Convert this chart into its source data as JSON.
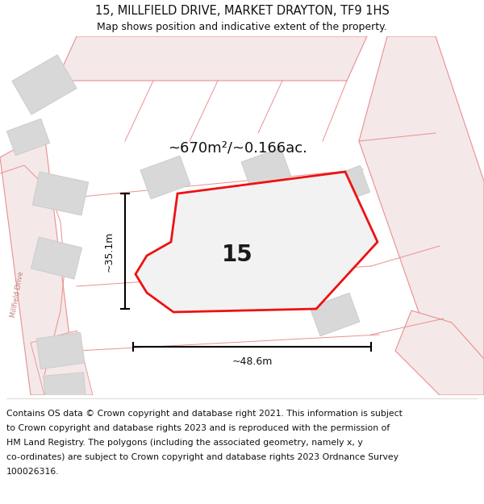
{
  "title_line1": "15, MILLFIELD DRIVE, MARKET DRAYTON, TF9 1HS",
  "title_line2": "Map shows position and indicative extent of the property.",
  "area_label": "~670m²/~0.166ac.",
  "plot_number": "15",
  "dim_width": "~48.6m",
  "dim_height": "~35.1m",
  "footer_lines": [
    "Contains OS data © Crown copyright and database right 2021. This information is subject",
    "to Crown copyright and database rights 2023 and is reproduced with the permission of",
    "HM Land Registry. The polygons (including the associated geometry, namely x, y",
    "co-ordinates) are subject to Crown copyright and database rights 2023 Ordnance Survey",
    "100026316."
  ],
  "bg_color": "#ffffff",
  "map_bg": "#ffffff",
  "plot_color": "#ee1111",
  "plot_fill": "#f0f0f0",
  "road_fill": "#f5e8e8",
  "road_line": "#e89090",
  "building_fill": "#d8d8d8",
  "building_edge": "#cccccc",
  "title_fontsize": 10.5,
  "subtitle_fontsize": 9,
  "footer_fontsize": 7.8,
  "millfield_text": "Millfield Drive",
  "millfield_color": "#c08080"
}
